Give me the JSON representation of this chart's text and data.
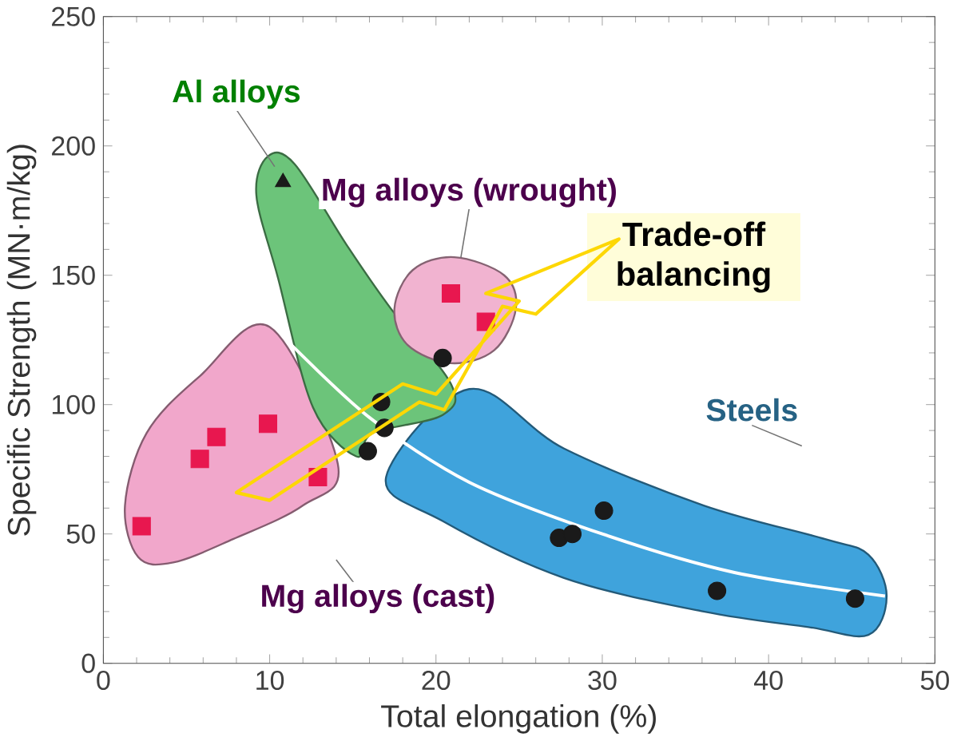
{
  "chart_data": {
    "type": "scatter",
    "xlabel": "Total elongation (%)",
    "ylabel": "Specific Strength (MN·m/kg)",
    "xlim": [
      0,
      50
    ],
    "ylim": [
      0,
      250
    ],
    "xticks": [
      0,
      10,
      20,
      30,
      40,
      50
    ],
    "yticks": [
      0,
      50,
      100,
      150,
      200,
      250
    ],
    "grid": false,
    "series": [
      {
        "name": "Steels",
        "type": "area",
        "color": "#3fa3dc",
        "x": [
          22.0,
          27.7,
          36.1,
          43.4,
          46.0,
          47.1,
          46.0,
          42.4,
          36.1,
          27.7,
          20.4,
          17.0
        ],
        "values": [
          106,
          83,
          61,
          48,
          42,
          26,
          11,
          14,
          20,
          33,
          55,
          72
        ]
      },
      {
        "name": "Mg alloys (cast)",
        "type": "area",
        "color": "#f1a7cb",
        "x": [
          2.1,
          1.3,
          2.6,
          5.8,
          10.0,
          14.1,
          12.0,
          7.8,
          4.2
        ],
        "values": [
          41,
          61,
          89,
          111,
          130,
          77,
          61,
          48,
          39
        ]
      },
      {
        "name": "Al alloys",
        "type": "area",
        "color": "#6cc47a",
        "x": [
          9.2,
          9.9,
          11.5,
          14.6,
          17.3,
          20.9,
          20.4,
          16.2,
          15.2,
          12.6,
          10.5
        ],
        "values": [
          181,
          196,
          193,
          162,
          137,
          108,
          96,
          89,
          80,
          99,
          149
        ]
      },
      {
        "name": "Mg alloys (wrought)",
        "type": "area",
        "color": "#f1b3d0",
        "x": [
          17.5,
          18.6,
          21.1,
          24.1,
          24.8,
          23.5,
          20.9,
          18.3
        ],
        "values": [
          137,
          152,
          157,
          150,
          137,
          121,
          116,
          123
        ]
      },
      {
        "type": "line",
        "color": "#ffffff",
        "marker": "none",
        "x": [
          11,
          16,
          22,
          30,
          38,
          47
        ],
        "values": [
          125,
          95,
          70,
          50,
          35,
          26
        ]
      },
      {
        "color": "#e8174f",
        "marker": "square",
        "x": [
          2.3,
          5.8,
          6.8,
          9.9,
          12.9,
          20.9,
          23.0
        ],
        "values": [
          53,
          79,
          87.5,
          92.6,
          72,
          143,
          132
        ]
      },
      {
        "color": "#1a1a1a",
        "marker": "circle",
        "x": [
          16.7,
          16.9,
          15.9,
          20.4,
          27.4,
          28.2,
          30.1,
          36.9,
          45.2
        ],
        "values": [
          101,
          91,
          82,
          118,
          48.5,
          50,
          59,
          28,
          25
        ]
      },
      {
        "color": "#1a1a1a",
        "marker": "triangle",
        "x": [
          10.8
        ],
        "values": [
          186
        ]
      }
    ],
    "annotations": [
      "Trade-off balancing"
    ]
  }
}
